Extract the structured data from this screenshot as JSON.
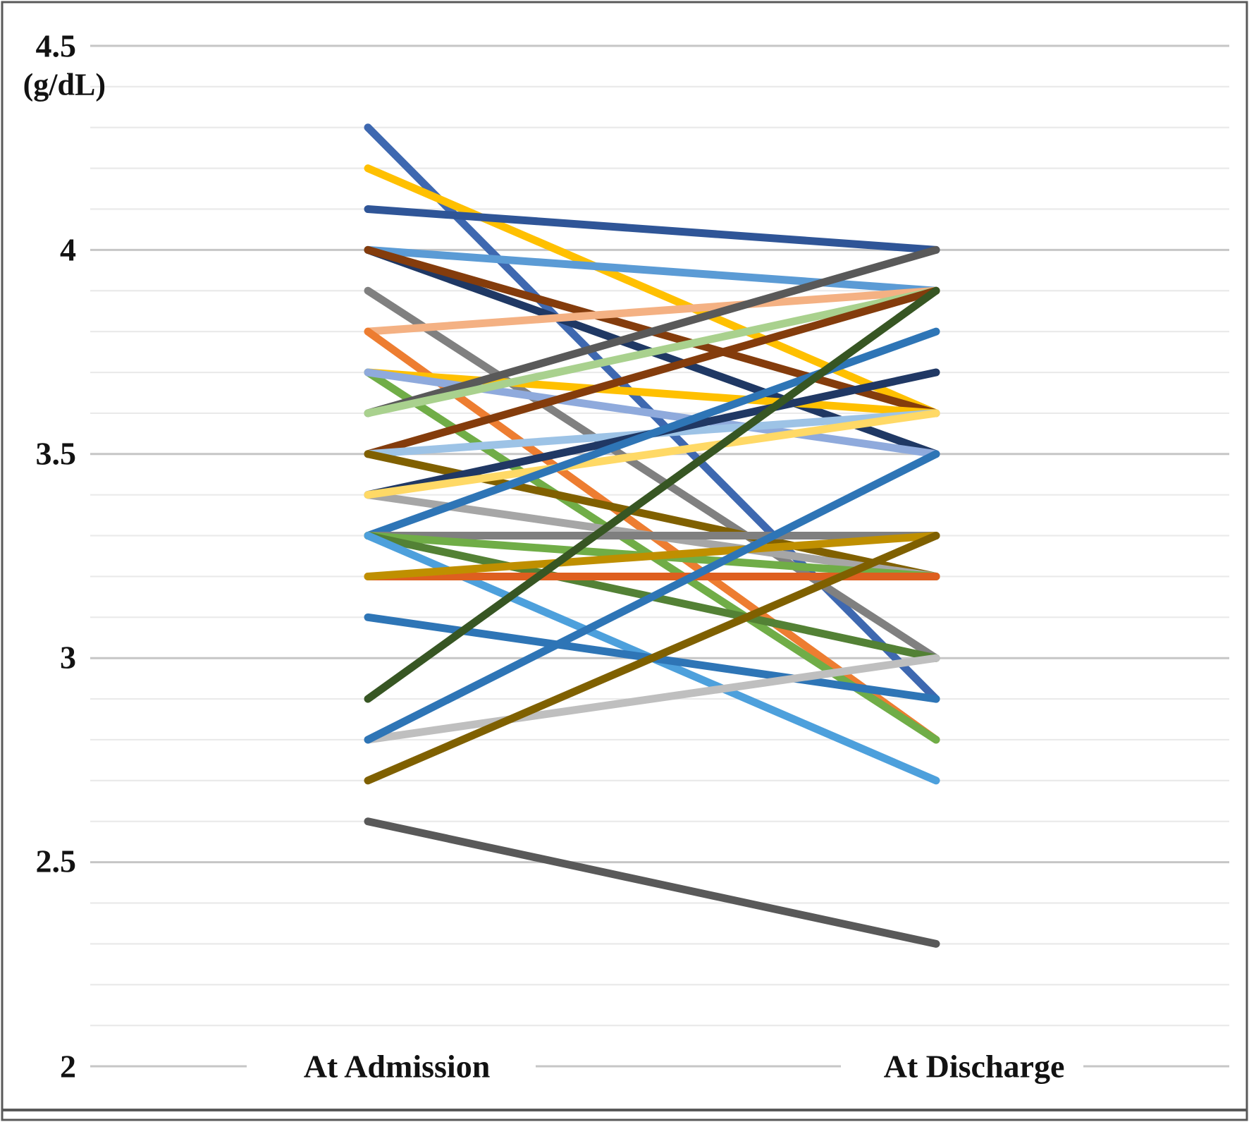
{
  "figure": {
    "kind": "slope-chart",
    "background": "#ffffff"
  },
  "y_axis": {
    "unit_label": "(g/dL)",
    "tick_labels": [
      "4.5",
      "4",
      "3.5",
      "3",
      "2.5",
      "2"
    ],
    "tick_values": [
      4.5,
      4,
      3.5,
      3,
      2.5,
      2
    ],
    "min": 2,
    "max": 4.5,
    "minor_step": 0.1
  },
  "x_axis": {
    "categories": [
      "At Admission",
      "At Discharge"
    ]
  },
  "colors": {
    "grid_minor": "#EAEAEA",
    "grid_major": "#C6C6C6",
    "axis_text": "#121212",
    "border": "#595959"
  },
  "chart_data": {
    "type": "line",
    "subtype": "slope-paired-lines",
    "title": "",
    "xlabel": "",
    "ylabel": "(g/dL)",
    "categories": [
      "At Admission",
      "At Discharge"
    ],
    "ylim": [
      2,
      4.5
    ],
    "grid": "horizontal minor 0.1, major 0.5",
    "legend": "none",
    "series": [
      {
        "color": "#3E68B0",
        "values": [
          4.3,
          2.9
        ]
      },
      {
        "color": "#FFC000",
        "values": [
          4.2,
          3.6
        ]
      },
      {
        "color": "#2F5597",
        "values": [
          4.1,
          4.0
        ]
      },
      {
        "color": "#5B9BD5",
        "values": [
          4.0,
          3.9
        ]
      },
      {
        "color": "#1F3864",
        "values": [
          4.0,
          3.5
        ]
      },
      {
        "color": "#843C0C",
        "values": [
          4.0,
          3.6
        ]
      },
      {
        "color": "#808080",
        "values": [
          3.9,
          3.0
        ]
      },
      {
        "color": "#F4B183",
        "values": [
          3.8,
          3.9
        ]
      },
      {
        "color": "#ED7D31",
        "values": [
          3.8,
          2.8
        ]
      },
      {
        "color": "#FFC000",
        "values": [
          3.7,
          3.6
        ]
      },
      {
        "color": "#70AD47",
        "values": [
          3.7,
          2.8
        ]
      },
      {
        "color": "#8FAADC",
        "values": [
          3.7,
          3.5
        ]
      },
      {
        "color": "#595959",
        "values": [
          3.6,
          4.0
        ]
      },
      {
        "color": "#A9D18E",
        "values": [
          3.6,
          3.9
        ]
      },
      {
        "color": "#843C0C",
        "values": [
          3.5,
          3.9
        ]
      },
      {
        "color": "#9DC3E6",
        "values": [
          3.5,
          3.6
        ]
      },
      {
        "color": "#806000",
        "values": [
          3.5,
          3.2
        ]
      },
      {
        "color": "#203864",
        "values": [
          3.4,
          3.7
        ]
      },
      {
        "color": "#A6A6A6",
        "values": [
          3.4,
          3.2
        ]
      },
      {
        "color": "#FFD966",
        "values": [
          3.4,
          3.6
        ]
      },
      {
        "color": "#2E75B6",
        "values": [
          3.3,
          3.8
        ]
      },
      {
        "color": "#7F7F7F",
        "values": [
          3.3,
          3.3
        ]
      },
      {
        "color": "#70AD47",
        "values": [
          3.3,
          3.2
        ]
      },
      {
        "color": "#538135",
        "values": [
          3.3,
          3.0
        ]
      },
      {
        "color": "#4DA0DC",
        "values": [
          3.3,
          2.7
        ]
      },
      {
        "color": "#DE5F1F",
        "values": [
          3.2,
          3.2
        ]
      },
      {
        "color": "#BF8F00",
        "values": [
          3.2,
          3.3
        ]
      },
      {
        "color": "#2E75B6",
        "values": [
          3.1,
          2.9
        ]
      },
      {
        "color": "#375623",
        "values": [
          2.9,
          3.9
        ]
      },
      {
        "color": "#BFBFBF",
        "values": [
          2.8,
          3.0
        ]
      },
      {
        "color": "#2E75B6",
        "values": [
          2.8,
          3.5
        ]
      },
      {
        "color": "#7F6000",
        "values": [
          2.7,
          3.3
        ]
      },
      {
        "color": "#595959",
        "values": [
          2.6,
          2.3
        ]
      }
    ]
  }
}
